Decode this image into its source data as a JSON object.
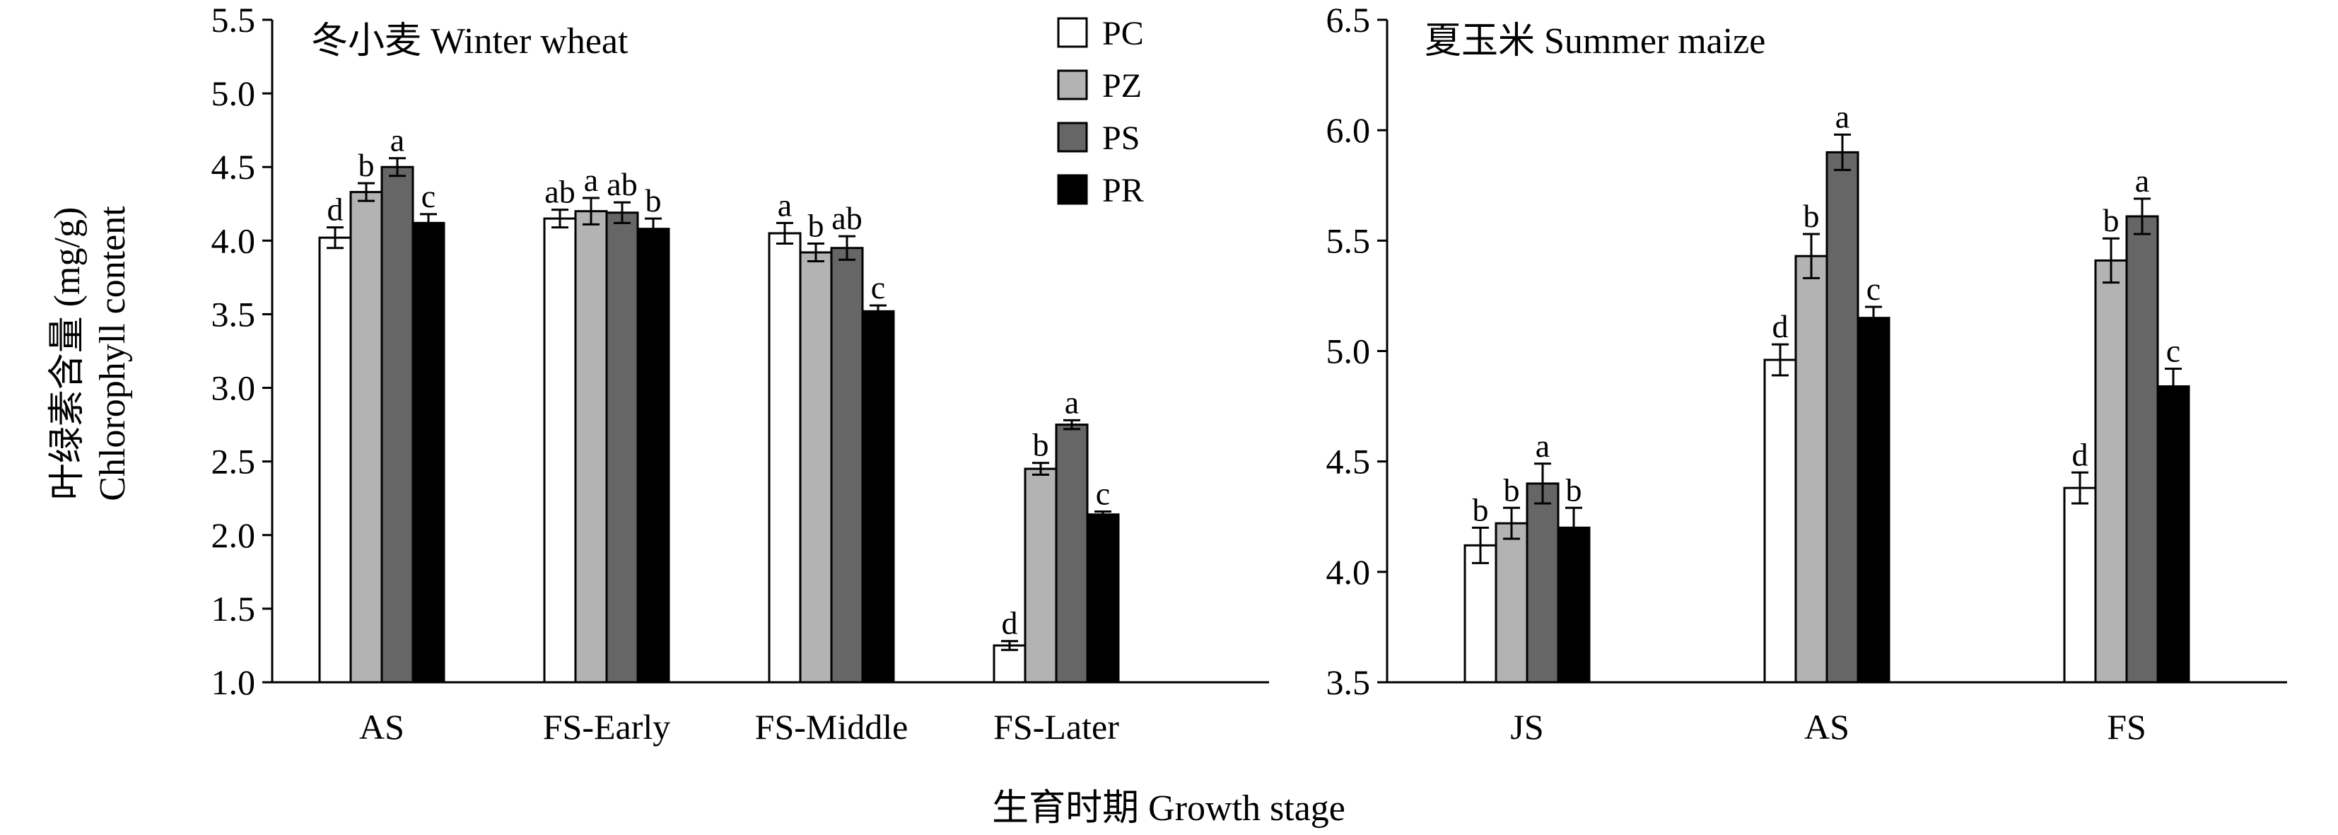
{
  "figure": {
    "shared_xlabel": "生育时期 Growth stage",
    "shared_ylabel_cn": "叶绿素含量 (mg/g)",
    "shared_ylabel_en": "Chlorophyll content"
  },
  "legend": [
    {
      "label": "PC",
      "color": "#ffffff"
    },
    {
      "label": "PZ",
      "color": "#b3b3b3"
    },
    {
      "label": "PS",
      "color": "#666666"
    },
    {
      "label": "PR",
      "color": "#000000"
    }
  ],
  "chart_data": [
    {
      "type": "bar",
      "title": "冬小麦 Winter wheat",
      "xlabel": "生育时期 Growth stage",
      "ylabel": "叶绿素含量 (mg/g) Chlorophyll content",
      "ylim": [
        1.0,
        5.5
      ],
      "yticks": [
        "1.0",
        "1.5",
        "2.0",
        "2.5",
        "3.0",
        "3.5",
        "4.0",
        "4.5",
        "5.0",
        "5.5"
      ],
      "categories": [
        "AS",
        "FS-Early",
        "FS-Middle",
        "FS-Later"
      ],
      "series": [
        {
          "name": "PC",
          "values": [
            4.02,
            4.15,
            4.05,
            1.25
          ],
          "errors": [
            0.07,
            0.06,
            0.07,
            0.03
          ],
          "labels": [
            "d",
            "ab",
            "a",
            "d"
          ]
        },
        {
          "name": "PZ",
          "values": [
            4.33,
            4.2,
            3.92,
            2.45
          ],
          "errors": [
            0.06,
            0.09,
            0.06,
            0.04
          ],
          "labels": [
            "b",
            "a",
            "b",
            "b"
          ]
        },
        {
          "name": "PS",
          "values": [
            4.5,
            4.19,
            3.95,
            2.75
          ],
          "errors": [
            0.06,
            0.07,
            0.08,
            0.03
          ],
          "labels": [
            "a",
            "ab",
            "ab",
            "a"
          ]
        },
        {
          "name": "PR",
          "values": [
            4.12,
            4.08,
            3.52,
            2.14
          ],
          "errors": [
            0.06,
            0.07,
            0.04,
            0.02
          ],
          "labels": [
            "c",
            "b",
            "c",
            "c"
          ]
        }
      ]
    },
    {
      "type": "bar",
      "title": "夏玉米 Summer maize",
      "xlabel": "生育时期 Growth stage",
      "ylabel": "",
      "ylim": [
        3.5,
        6.5
      ],
      "yticks": [
        "3.5",
        "4.0",
        "4.5",
        "5.0",
        "5.5",
        "6.0",
        "6.5"
      ],
      "categories": [
        "JS",
        "AS",
        "FS"
      ],
      "series": [
        {
          "name": "PC",
          "values": [
            4.12,
            4.96,
            4.38
          ],
          "errors": [
            0.08,
            0.07,
            0.07
          ],
          "labels": [
            "b",
            "d",
            "d"
          ]
        },
        {
          "name": "PZ",
          "values": [
            4.22,
            5.43,
            5.41
          ],
          "errors": [
            0.07,
            0.1,
            0.1
          ],
          "labels": [
            "b",
            "b",
            "b"
          ]
        },
        {
          "name": "PS",
          "values": [
            4.4,
            5.9,
            5.61
          ],
          "errors": [
            0.09,
            0.08,
            0.08
          ],
          "labels": [
            "a",
            "a",
            "a"
          ]
        },
        {
          "name": "PR",
          "values": [
            4.2,
            5.15,
            4.84
          ],
          "errors": [
            0.09,
            0.05,
            0.08
          ],
          "labels": [
            "b",
            "c",
            "c"
          ]
        }
      ]
    }
  ]
}
